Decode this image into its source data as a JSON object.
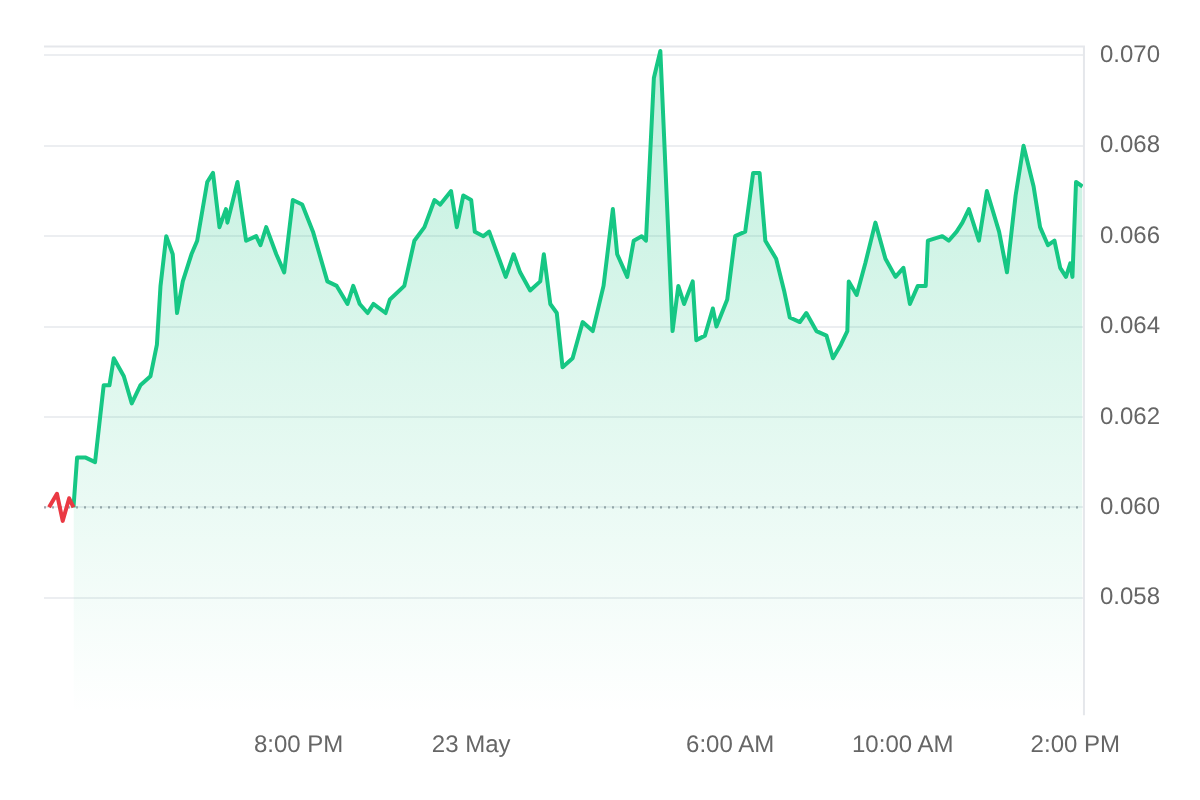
{
  "chart_data": {
    "type": "area",
    "xlim": [
      "--05-22T14:06",
      "--05-23T14:12"
    ],
    "xticks": [
      {
        "value": "--05-22T20:00",
        "label": "8:00 PM"
      },
      {
        "value": "--05-23T00:00",
        "label": "23 May"
      },
      {
        "value": "--05-23T06:00",
        "label": "6:00 AM"
      },
      {
        "value": "--05-23T10:00",
        "label": "10:00 AM"
      },
      {
        "value": "--05-23T14:00",
        "label": "2:00 PM"
      }
    ],
    "ylim": [
      0.0554,
      0.0702
    ],
    "yticks": [
      {
        "value": 0.058,
        "label": "0.058"
      },
      {
        "value": 0.06,
        "label": "0.060"
      },
      {
        "value": 0.062,
        "label": "0.062"
      },
      {
        "value": 0.064,
        "label": "0.064"
      },
      {
        "value": 0.066,
        "label": "0.066"
      },
      {
        "value": 0.068,
        "label": "0.068"
      },
      {
        "value": 0.07,
        "label": "0.070"
      }
    ],
    "grid": "y",
    "legend": false,
    "ref_lines": [
      {
        "axis": "y",
        "value": 0.06,
        "color": "#a0a4ad",
        "line_style": "dotted"
      }
    ],
    "series": [
      {
        "type": "line",
        "color": "#ea3943",
        "x": [
          "--05-22T14:13",
          "--05-22T14:24",
          "--05-22T14:32",
          "--05-22T14:41",
          "--05-22T14:47"
        ],
        "values": [
          0.06,
          0.0603,
          0.0597,
          0.0602,
          0.06
        ]
      },
      {
        "color": "#16c784",
        "x": [
          "--05-22T14:47",
          "--05-22T14:52",
          "--05-22T15:04",
          "--05-22T15:17",
          "--05-22T15:29",
          "--05-22T15:37",
          "--05-22T15:43",
          "--05-22T15:57",
          "--05-22T16:08",
          "--05-22T16:20",
          "--05-22T16:34",
          "--05-22T16:43",
          "--05-22T16:48",
          "--05-22T16:56",
          "--05-22T17:05",
          "--05-22T17:11",
          "--05-22T17:19",
          "--05-22T17:31",
          "--05-22T17:39",
          "--05-22T17:53",
          "--05-22T18:01",
          "--05-22T18:10",
          "--05-22T18:19",
          "--05-22T18:21",
          "--05-22T18:35",
          "--05-22T18:47",
          "--05-22T19:01",
          "--05-22T19:07",
          "--05-22T19:15",
          "--05-22T19:29",
          "--05-22T19:40",
          "--05-22T19:52",
          "--05-22T20:05",
          "--05-22T20:20",
          "--05-22T20:40",
          "--05-22T20:53",
          "--05-22T21:08",
          "--05-22T21:16",
          "--05-22T21:25",
          "--05-22T21:36",
          "--05-22T21:44",
          "--05-22T22:01",
          "--05-22T22:07",
          "--05-22T22:27",
          "--05-22T22:41",
          "--05-22T22:55",
          "--05-22T23:09",
          "--05-22T23:17",
          "--05-22T23:32",
          "--05-22T23:40",
          "--05-22T23:49",
          "--05-23T00:00",
          "--05-23T00:05",
          "--05-23T00:17",
          "--05-23T00:25",
          "--05-23T00:48",
          "--05-23T00:59",
          "--05-23T01:08",
          "--05-23T01:22",
          "--05-23T01:36",
          "--05-23T01:41",
          "--05-23T01:50",
          "--05-23T01:59",
          "--05-23T02:07",
          "--05-23T02:21",
          "--05-23T02:35",
          "--05-23T02:49",
          "--05-23T03:04",
          "--05-23T03:17",
          "--05-23T03:23",
          "--05-23T03:37",
          "--05-23T03:46",
          "--05-23T03:57",
          "--05-23T04:03",
          "--05-23T04:14",
          "--05-23T04:23",
          "--05-23T04:40",
          "--05-23T04:48",
          "--05-23T04:56",
          "--05-23T05:08",
          "--05-23T05:13",
          "--05-23T05:25",
          "--05-23T05:36",
          "--05-23T05:41",
          "--05-23T05:56",
          "--05-23T06:07",
          "--05-23T06:21",
          "--05-23T06:32",
          "--05-23T06:41",
          "--05-23T06:49",
          "--05-23T07:04",
          "--05-23T07:15",
          "--05-23T07:23",
          "--05-23T07:37",
          "--05-23T07:46",
          "--05-23T08:00",
          "--05-23T08:14",
          "--05-23T08:23",
          "--05-23T08:34",
          "--05-23T08:43",
          "--05-23T08:45",
          "--05-23T08:56",
          "--05-23T09:08",
          "--05-23T09:22",
          "--05-23T09:36",
          "--05-23T09:50",
          "--05-23T10:01",
          "--05-23T10:10",
          "--05-23T10:21",
          "--05-23T10:32",
          "--05-23T10:35",
          "--05-23T10:55",
          "--05-23T11:04",
          "--05-23T11:15",
          "--05-23T11:23",
          "--05-23T11:32",
          "--05-23T11:46",
          "--05-23T11:57",
          "--05-23T12:14",
          "--05-23T12:25",
          "--05-23T12:37",
          "--05-23T12:48",
          "--05-23T13:02",
          "--05-23T13:11",
          "--05-23T13:22",
          "--05-23T13:31",
          "--05-23T13:39",
          "--05-23T13:47",
          "--05-23T13:53",
          "--05-23T13:56",
          "--05-23T14:01",
          "--05-23T14:10"
        ],
        "values": [
          0.06,
          0.0611,
          0.0611,
          0.061,
          0.0627,
          0.0627,
          0.0633,
          0.0629,
          0.0623,
          0.0627,
          0.0629,
          0.0636,
          0.0649,
          0.066,
          0.0656,
          0.0643,
          0.065,
          0.0656,
          0.0659,
          0.0672,
          0.0674,
          0.0662,
          0.0666,
          0.0663,
          0.0672,
          0.0659,
          0.066,
          0.0658,
          0.0662,
          0.0656,
          0.0652,
          0.0668,
          0.0667,
          0.0661,
          0.065,
          0.0649,
          0.0645,
          0.0649,
          0.0645,
          0.0643,
          0.0645,
          0.0643,
          0.0646,
          0.0649,
          0.0659,
          0.0662,
          0.0668,
          0.0667,
          0.067,
          0.0662,
          0.0669,
          0.0668,
          0.0661,
          0.066,
          0.0661,
          0.0651,
          0.0656,
          0.0652,
          0.0648,
          0.065,
          0.0656,
          0.0645,
          0.0643,
          0.0631,
          0.0633,
          0.0641,
          0.0639,
          0.0649,
          0.0666,
          0.0656,
          0.0651,
          0.0659,
          0.066,
          0.0659,
          0.0695,
          0.0701,
          0.0639,
          0.0649,
          0.0645,
          0.065,
          0.0637,
          0.0638,
          0.0644,
          0.064,
          0.0646,
          0.066,
          0.0661,
          0.0674,
          0.0674,
          0.0659,
          0.0655,
          0.0648,
          0.0642,
          0.0641,
          0.0643,
          0.0639,
          0.0638,
          0.0633,
          0.0636,
          0.0639,
          0.065,
          0.0647,
          0.0654,
          0.0663,
          0.0655,
          0.0651,
          0.0653,
          0.0645,
          0.0649,
          0.0649,
          0.0659,
          0.066,
          0.0659,
          0.0661,
          0.0663,
          0.0666,
          0.0659,
          0.067,
          0.0661,
          0.0652,
          0.0669,
          0.068,
          0.0671,
          0.0662,
          0.0658,
          0.0659,
          0.0653,
          0.0651,
          0.0654,
          0.0651,
          0.0672,
          0.0671
        ]
      }
    ]
  }
}
